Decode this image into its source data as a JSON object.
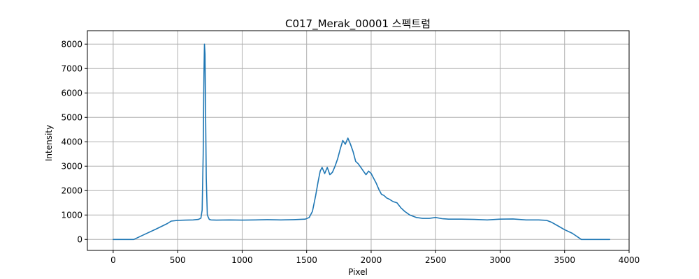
{
  "chart_data": {
    "type": "line",
    "title": "C017_Merak_00001 스펙트럼",
    "xlabel": "Pixel",
    "ylabel": "Intensity",
    "xlim": [
      -200,
      4000
    ],
    "ylim": [
      -450,
      8550
    ],
    "xticks": [
      0,
      500,
      1000,
      1500,
      2000,
      2500,
      3000,
      3500,
      4000
    ],
    "yticks": [
      0,
      1000,
      2000,
      3000,
      4000,
      5000,
      6000,
      7000,
      8000
    ],
    "grid": true,
    "series_color": "#1f77b4",
    "series": [
      {
        "x": [
          0,
          160,
          240,
          330,
          420,
          450,
          500,
          560,
          620,
          660,
          680,
          690,
          698,
          704,
          708,
          712,
          716,
          722,
          730,
          745,
          760,
          800,
          900,
          1000,
          1100,
          1200,
          1300,
          1400,
          1490,
          1520,
          1545,
          1570,
          1590,
          1605,
          1620,
          1640,
          1660,
          1680,
          1700,
          1720,
          1740,
          1760,
          1780,
          1800,
          1820,
          1840,
          1860,
          1880,
          1900,
          1920,
          1940,
          1960,
          1980,
          2000,
          2020,
          2040,
          2060,
          2080,
          2100,
          2120,
          2140,
          2170,
          2200,
          2230,
          2260,
          2300,
          2350,
          2400,
          2450,
          2500,
          2550,
          2600,
          2700,
          2800,
          2900,
          3000,
          3100,
          3200,
          3300,
          3360,
          3400,
          3450,
          3500,
          3560,
          3630,
          3850
        ],
        "y": [
          0,
          0,
          200,
          420,
          650,
          750,
          780,
          790,
          800,
          820,
          870,
          1200,
          3500,
          6800,
          8000,
          7600,
          5500,
          2500,
          1000,
          820,
          800,
          790,
          800,
          790,
          800,
          810,
          800,
          810,
          830,
          900,
          1150,
          1800,
          2400,
          2800,
          2950,
          2700,
          2950,
          2650,
          2750,
          3000,
          3300,
          3700,
          4050,
          3900,
          4150,
          3900,
          3600,
          3200,
          3100,
          2950,
          2800,
          2650,
          2800,
          2700,
          2500,
          2300,
          2050,
          1850,
          1800,
          1700,
          1650,
          1550,
          1500,
          1300,
          1150,
          1000,
          900,
          860,
          860,
          900,
          850,
          830,
          830,
          820,
          800,
          830,
          840,
          800,
          800,
          780,
          700,
          550,
          400,
          250,
          0,
          0
        ]
      }
    ]
  }
}
